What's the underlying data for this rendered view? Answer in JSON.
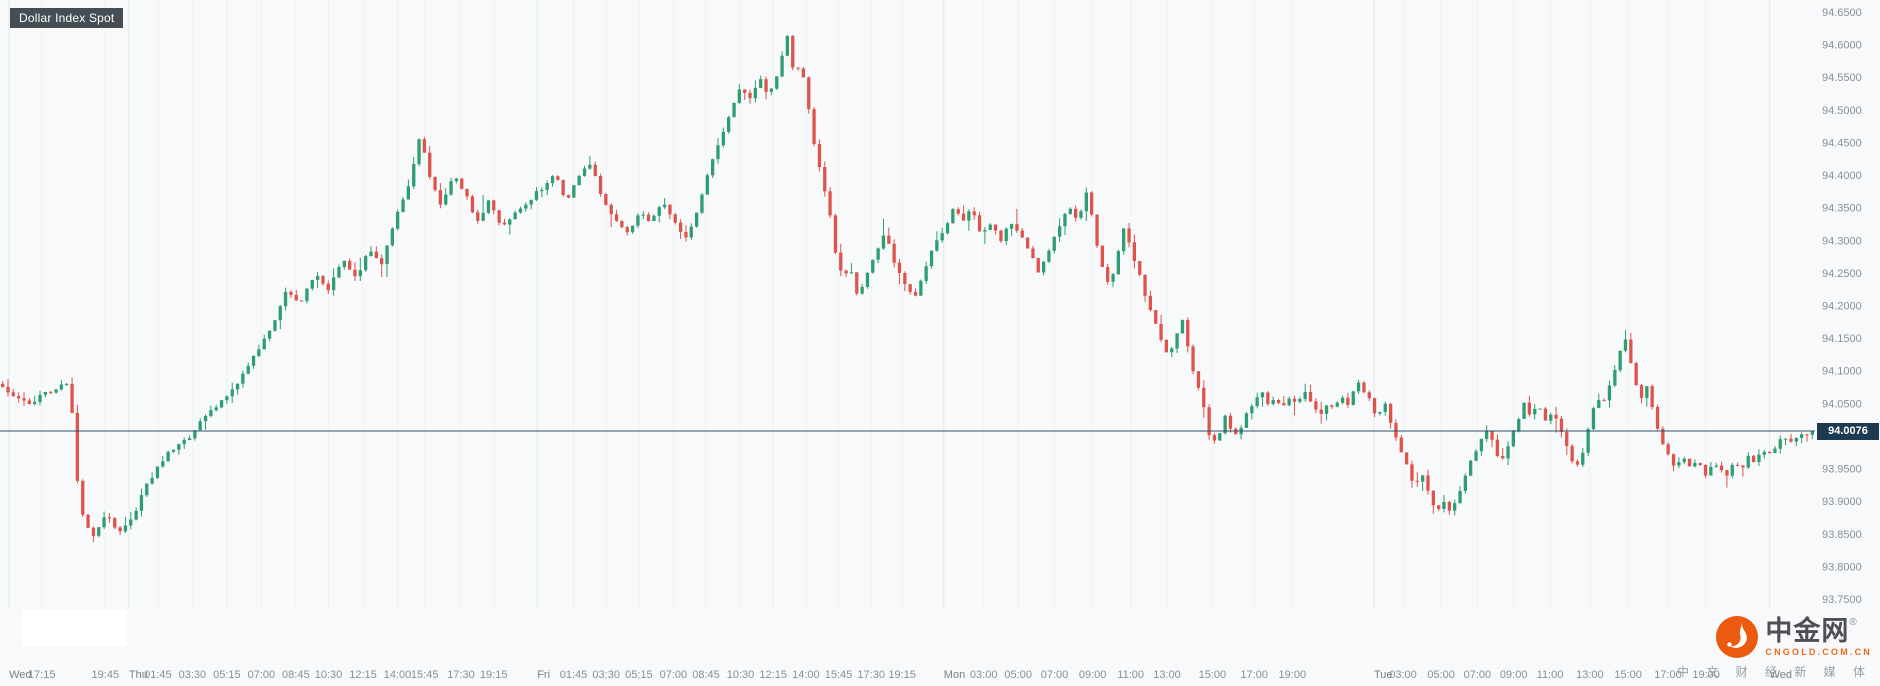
{
  "instrument_badge": {
    "label": "Dollar Index Spot"
  },
  "price_badge": {
    "label": "94.0076"
  },
  "logo": {
    "name": "中金网",
    "reg": "®",
    "url": "CNGOLD.COM.CN",
    "tagline": "中 文 财 经 新 媒 体"
  },
  "chart_data": {
    "type": "candlestick",
    "title": "Dollar Index Spot",
    "last_price": 94.0076,
    "last_price_label": "94.0076",
    "up_color": "#2e9d72",
    "down_color": "#de544b",
    "price_line_color": "#2c4d68",
    "badge_color": "#1c3a52",
    "axis_text_color": "#878f96",
    "grid_color": "#eef2f5",
    "day_grid_color": "#e2e8ec",
    "candle_count": 340,
    "seed": 20211124,
    "y_axis": {
      "min": 93.75,
      "max": 94.65,
      "tick_step": 0.05,
      "ticks": [
        "94.6500",
        "94.6000",
        "94.5500",
        "94.5000",
        "94.4500",
        "94.4000",
        "94.3500",
        "94.3000",
        "94.2500",
        "94.2000",
        "94.1500",
        "94.1000",
        "94.0500",
        "94.0000",
        "93.9500",
        "93.9000",
        "93.8500",
        "93.8000",
        "93.7500"
      ]
    },
    "x_axis": {
      "labels": [
        {
          "label": "Wed",
          "f": 0.005,
          "day": true
        },
        {
          "label": "17:15",
          "f": 0.023
        },
        {
          "label": "19:45",
          "f": 0.058
        },
        {
          "label": "Thu",
          "f": 0.071,
          "day": true
        },
        {
          "label": "01:45",
          "f": 0.087
        },
        {
          "label": "03:30",
          "f": 0.106
        },
        {
          "label": "05:15",
          "f": 0.125
        },
        {
          "label": "07:00",
          "f": 0.144
        },
        {
          "label": "08:45",
          "f": 0.163
        },
        {
          "label": "10:30",
          "f": 0.181
        },
        {
          "label": "12:15",
          "f": 0.2
        },
        {
          "label": "14:00",
          "f": 0.219
        },
        {
          "label": "15:45",
          "f": 0.234
        },
        {
          "label": "17:30",
          "f": 0.254
        },
        {
          "label": "19:15",
          "f": 0.272
        },
        {
          "label": "Fri",
          "f": 0.296,
          "day": true
        },
        {
          "label": "01:45",
          "f": 0.316
        },
        {
          "label": "03:30",
          "f": 0.334
        },
        {
          "label": "05:15",
          "f": 0.352
        },
        {
          "label": "07:00",
          "f": 0.371
        },
        {
          "label": "08:45",
          "f": 0.389
        },
        {
          "label": "10:30",
          "f": 0.408
        },
        {
          "label": "12:15",
          "f": 0.426
        },
        {
          "label": "14:00",
          "f": 0.444
        },
        {
          "label": "15:45",
          "f": 0.462
        },
        {
          "label": "17:30",
          "f": 0.48
        },
        {
          "label": "19:15",
          "f": 0.497
        },
        {
          "label": "Mon",
          "f": 0.52,
          "day": true
        },
        {
          "label": "03:00",
          "f": 0.542
        },
        {
          "label": "05:00",
          "f": 0.561
        },
        {
          "label": "07:00",
          "f": 0.581
        },
        {
          "label": "09:00",
          "f": 0.602
        },
        {
          "label": "11:00",
          "f": 0.623
        },
        {
          "label": "13:00",
          "f": 0.643
        },
        {
          "label": "15:00",
          "f": 0.668
        },
        {
          "label": "17:00",
          "f": 0.691
        },
        {
          "label": "19:00",
          "f": 0.712
        },
        {
          "label": "Tue",
          "f": 0.757,
          "day": true
        },
        {
          "label": "03:00",
          "f": 0.773
        },
        {
          "label": "05:00",
          "f": 0.794
        },
        {
          "label": "07:00",
          "f": 0.814
        },
        {
          "label": "09:00",
          "f": 0.834
        },
        {
          "label": "11:00",
          "f": 0.854
        },
        {
          "label": "13:00",
          "f": 0.876
        },
        {
          "label": "15:00",
          "f": 0.897
        },
        {
          "label": "17:00",
          "f": 0.919
        },
        {
          "label": "19:00",
          "f": 0.94
        },
        {
          "label": "Wed",
          "f": 0.975,
          "day": true
        }
      ]
    },
    "anchors": [
      [
        0.0,
        94.08
      ],
      [
        0.017,
        94.05
      ],
      [
        0.03,
        94.07
      ],
      [
        0.04,
        94.08
      ],
      [
        0.045,
        93.9
      ],
      [
        0.052,
        93.84
      ],
      [
        0.06,
        93.88
      ],
      [
        0.066,
        93.85
      ],
      [
        0.074,
        93.87
      ],
      [
        0.083,
        93.93
      ],
      [
        0.093,
        93.97
      ],
      [
        0.106,
        94.0
      ],
      [
        0.118,
        94.04
      ],
      [
        0.13,
        94.07
      ],
      [
        0.141,
        94.12
      ],
      [
        0.152,
        94.17
      ],
      [
        0.159,
        94.22
      ],
      [
        0.167,
        94.2
      ],
      [
        0.175,
        94.25
      ],
      [
        0.182,
        94.22
      ],
      [
        0.19,
        94.27
      ],
      [
        0.198,
        94.24
      ],
      [
        0.205,
        94.29
      ],
      [
        0.211,
        94.26
      ],
      [
        0.219,
        94.33
      ],
      [
        0.226,
        94.38
      ],
      [
        0.233,
        94.46
      ],
      [
        0.238,
        94.4
      ],
      [
        0.245,
        94.35
      ],
      [
        0.251,
        94.4
      ],
      [
        0.258,
        94.37
      ],
      [
        0.264,
        94.33
      ],
      [
        0.271,
        94.36
      ],
      [
        0.278,
        94.32
      ],
      [
        0.284,
        94.34
      ],
      [
        0.292,
        94.36
      ],
      [
        0.3,
        94.38
      ],
      [
        0.307,
        94.4
      ],
      [
        0.314,
        94.36
      ],
      [
        0.32,
        94.4
      ],
      [
        0.327,
        94.42
      ],
      [
        0.334,
        94.36
      ],
      [
        0.34,
        94.33
      ],
      [
        0.347,
        94.31
      ],
      [
        0.354,
        94.34
      ],
      [
        0.36,
        94.33
      ],
      [
        0.367,
        94.36
      ],
      [
        0.373,
        94.33
      ],
      [
        0.38,
        94.3
      ],
      [
        0.387,
        94.36
      ],
      [
        0.393,
        94.42
      ],
      [
        0.399,
        94.46
      ],
      [
        0.404,
        94.5
      ],
      [
        0.409,
        94.53
      ],
      [
        0.415,
        94.52
      ],
      [
        0.42,
        94.55
      ],
      [
        0.425,
        94.52
      ],
      [
        0.431,
        94.56
      ],
      [
        0.435,
        94.62
      ],
      [
        0.439,
        94.55
      ],
      [
        0.443,
        94.57
      ],
      [
        0.447,
        94.5
      ],
      [
        0.45,
        94.45
      ],
      [
        0.454,
        94.4
      ],
      [
        0.458,
        94.35
      ],
      [
        0.462,
        94.28
      ],
      [
        0.466,
        94.24
      ],
      [
        0.47,
        94.26
      ],
      [
        0.474,
        94.21
      ],
      [
        0.478,
        94.24
      ],
      [
        0.484,
        94.28
      ],
      [
        0.489,
        94.31
      ],
      [
        0.494,
        94.27
      ],
      [
        0.5,
        94.23
      ],
      [
        0.505,
        94.21
      ],
      [
        0.51,
        94.25
      ],
      [
        0.516,
        94.29
      ],
      [
        0.522,
        94.32
      ],
      [
        0.527,
        94.35
      ],
      [
        0.532,
        94.33
      ],
      [
        0.537,
        94.35
      ],
      [
        0.542,
        94.31
      ],
      [
        0.548,
        94.33
      ],
      [
        0.553,
        94.3
      ],
      [
        0.558,
        94.33
      ],
      [
        0.563,
        94.31
      ],
      [
        0.569,
        94.28
      ],
      [
        0.574,
        94.25
      ],
      [
        0.579,
        94.28
      ],
      [
        0.585,
        94.32
      ],
      [
        0.59,
        94.35
      ],
      [
        0.595,
        94.33
      ],
      [
        0.601,
        94.38
      ],
      [
        0.605,
        94.3
      ],
      [
        0.609,
        94.26
      ],
      [
        0.613,
        94.23
      ],
      [
        0.617,
        94.28
      ],
      [
        0.621,
        94.32
      ],
      [
        0.625,
        94.28
      ],
      [
        0.629,
        94.25
      ],
      [
        0.633,
        94.21
      ],
      [
        0.637,
        94.18
      ],
      [
        0.641,
        94.15
      ],
      [
        0.645,
        94.12
      ],
      [
        0.649,
        94.15
      ],
      [
        0.653,
        94.18
      ],
      [
        0.657,
        94.12
      ],
      [
        0.661,
        94.08
      ],
      [
        0.664,
        94.05
      ],
      [
        0.668,
        94.0
      ],
      [
        0.672,
        93.99
      ],
      [
        0.676,
        94.03
      ],
      [
        0.68,
        94.01
      ],
      [
        0.684,
        94.0
      ],
      [
        0.688,
        94.03
      ],
      [
        0.692,
        94.05
      ],
      [
        0.696,
        94.07
      ],
      [
        0.7,
        94.05
      ],
      [
        0.704,
        94.06
      ],
      [
        0.708,
        94.04
      ],
      [
        0.712,
        94.06
      ],
      [
        0.716,
        94.05
      ],
      [
        0.72,
        94.07
      ],
      [
        0.724,
        94.05
      ],
      [
        0.728,
        94.03
      ],
      [
        0.732,
        94.05
      ],
      [
        0.736,
        94.04
      ],
      [
        0.74,
        94.06
      ],
      [
        0.744,
        94.05
      ],
      [
        0.75,
        94.08
      ],
      [
        0.755,
        94.06
      ],
      [
        0.76,
        94.03
      ],
      [
        0.765,
        94.05
      ],
      [
        0.769,
        94.01
      ],
      [
        0.773,
        93.98
      ],
      [
        0.777,
        93.95
      ],
      [
        0.781,
        93.92
      ],
      [
        0.785,
        93.94
      ],
      [
        0.789,
        93.91
      ],
      [
        0.793,
        93.88
      ],
      [
        0.797,
        93.9
      ],
      [
        0.801,
        93.88
      ],
      [
        0.805,
        93.91
      ],
      [
        0.809,
        93.94
      ],
      [
        0.813,
        93.97
      ],
      [
        0.817,
        93.99
      ],
      [
        0.821,
        94.01
      ],
      [
        0.825,
        93.98
      ],
      [
        0.829,
        93.96
      ],
      [
        0.833,
        93.99
      ],
      [
        0.837,
        94.02
      ],
      [
        0.841,
        94.05
      ],
      [
        0.845,
        94.03
      ],
      [
        0.849,
        94.05
      ],
      [
        0.853,
        94.02
      ],
      [
        0.857,
        94.04
      ],
      [
        0.861,
        94.01
      ],
      [
        0.865,
        93.98
      ],
      [
        0.869,
        93.95
      ],
      [
        0.873,
        93.97
      ],
      [
        0.877,
        94.02
      ],
      [
        0.881,
        94.06
      ],
      [
        0.885,
        94.05
      ],
      [
        0.889,
        94.08
      ],
      [
        0.893,
        94.12
      ],
      [
        0.897,
        94.15
      ],
      [
        0.901,
        94.1
      ],
      [
        0.905,
        94.05
      ],
      [
        0.909,
        94.08
      ],
      [
        0.913,
        94.03
      ],
      [
        0.917,
        93.99
      ],
      [
        0.921,
        93.97
      ],
      [
        0.925,
        93.95
      ],
      [
        0.929,
        93.97
      ],
      [
        0.933,
        93.95
      ],
      [
        0.937,
        93.96
      ],
      [
        0.941,
        93.94
      ],
      [
        0.945,
        93.96
      ],
      [
        0.949,
        93.95
      ],
      [
        0.953,
        93.94
      ],
      [
        0.957,
        93.96
      ],
      [
        0.961,
        93.95
      ],
      [
        0.965,
        93.97
      ],
      [
        0.969,
        93.96
      ],
      [
        0.973,
        93.98
      ],
      [
        0.977,
        93.97
      ],
      [
        0.981,
        93.99
      ],
      [
        0.985,
        94.0
      ],
      [
        0.989,
        93.99
      ],
      [
        0.993,
        94.0
      ],
      [
        1.0,
        94.008
      ]
    ]
  }
}
